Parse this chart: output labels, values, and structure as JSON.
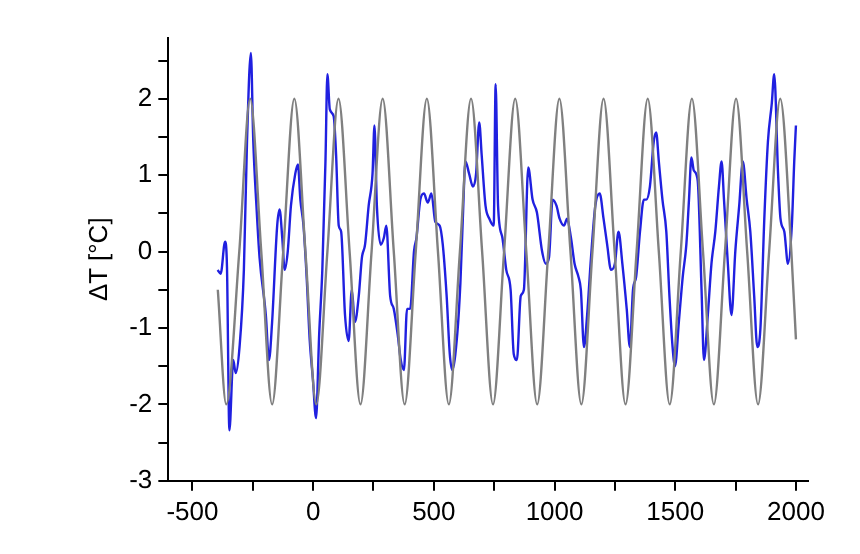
{
  "chart_data": {
    "type": "line",
    "ylabel": "ΔT [°C]",
    "xlim": [
      -600,
      2050
    ],
    "ylim": [
      -3,
      2.8
    ],
    "xticks": [
      -500,
      {
        "value": -250,
        "label": null
      },
      0,
      {
        "value": 250,
        "label": null
      },
      500,
      {
        "value": 750,
        "label": null
      },
      1000,
      {
        "value": 1250,
        "label": null
      },
      1500,
      {
        "value": 1750,
        "label": null
      },
      2000
    ],
    "yticks": [
      -3,
      {
        "value": -2.5,
        "label": null
      },
      -2,
      {
        "value": -1.5,
        "label": null
      },
      -1,
      {
        "value": -0.5,
        "label": null
      },
      0,
      {
        "value": 0.5,
        "label": null
      },
      1,
      {
        "value": 1.5,
        "label": null
      },
      2,
      {
        "value": 2.5,
        "label": null
      }
    ],
    "series": [
      {
        "color": "#808080",
        "x": [
          -395,
          -360,
          -306,
          -261,
          -215,
          -170,
          -124,
          -78,
          -32,
          13,
          59,
          105,
          151,
          196,
          242,
          288,
          334,
          379,
          425,
          471,
          517,
          562,
          608,
          654,
          700,
          745,
          791,
          837,
          883,
          928,
          974,
          1020,
          1066,
          1111,
          1157,
          1203,
          1249,
          1294,
          1340,
          1386,
          1432,
          1477,
          1523,
          1569,
          1615,
          1660,
          1706,
          1752,
          1798,
          1843,
          1889,
          1935,
          1981,
          2000
        ],
        "values": [
          -0.5,
          -2,
          0,
          2,
          0,
          -2,
          0,
          2,
          0,
          -2,
          0,
          2,
          0,
          -2,
          0,
          2,
          0,
          -2,
          0,
          2,
          0,
          -2,
          0,
          2,
          0,
          -2,
          0,
          2,
          0,
          -2,
          0,
          2,
          0,
          -2,
          0,
          2,
          0,
          -2,
          0,
          2,
          0,
          -2,
          0,
          2,
          0,
          -2,
          0,
          2,
          0,
          -2,
          0,
          2,
          0,
          -1.15
        ]
      },
      {
        "color": "#2020e0",
        "x": [
          -396,
          -383,
          -365,
          -357,
          -347,
          -331,
          -321,
          -305,
          -287,
          -274,
          -258,
          -248,
          -235,
          -222,
          -196,
          -183,
          -170,
          -149,
          -139,
          -128,
          -118,
          -105,
          -92,
          -74,
          -63,
          -53,
          -40,
          -27,
          -14,
          -1,
          12,
          25,
          38,
          51,
          59,
          69,
          85,
          95,
          106,
          116,
          132,
          147,
          160,
          173,
          189,
          202,
          215,
          230,
          246,
          254,
          264,
          280,
          293,
          303,
          319,
          334,
          350,
          363,
          376,
          389,
          402,
          418,
          428,
          444,
          459,
          475,
          490,
          506,
          524,
          537,
          553,
          566,
          576,
          597,
          610,
          620,
          631,
          646,
          662,
          675,
          688,
          698,
          714,
          730,
          748,
          756,
          766,
          784,
          800,
          818,
          831,
          844,
          860,
          873,
          891,
          909,
          927,
          948,
          964,
          977,
          992,
          1008,
          1021,
          1039,
          1052,
          1068,
          1083,
          1099,
          1109,
          1122,
          1135,
          1151,
          1169,
          1187,
          1203,
          1218,
          1234,
          1250,
          1265,
          1281,
          1299,
          1312,
          1325,
          1338,
          1354,
          1370,
          1380,
          1395,
          1411,
          1421,
          1432,
          1447,
          1463,
          1476,
          1489,
          1499,
          1515,
          1531,
          1546,
          1557,
          1567,
          1577,
          1593,
          1609,
          1619,
          1635,
          1650,
          1666,
          1681,
          1692,
          1702,
          1718,
          1733,
          1749,
          1765,
          1780,
          1796,
          1811,
          1827,
          1840,
          1853,
          1869,
          1884,
          1900,
          1910,
          1926,
          1936,
          1952,
          1967,
          1983,
          1993,
          2000
        ],
        "values": [
          -0.24,
          -0.29,
          0.13,
          -0.2,
          -2.34,
          -1.42,
          -1.59,
          -1.25,
          -0.24,
          1.44,
          2.6,
          1.44,
          0.6,
          -0.08,
          -0.83,
          -1.42,
          -0.92,
          0.34,
          0.55,
          0.18,
          -0.24,
          0.01,
          0.6,
          1.02,
          1.14,
          0.68,
          0.34,
          -0.33,
          -1.17,
          -1.67,
          -2.18,
          -1.08,
          -0.24,
          1.18,
          2.32,
          1.86,
          1.77,
          1.27,
          0.34,
          0.26,
          -0.83,
          -1.17,
          -0.5,
          -0.92,
          -0.58,
          -0.08,
          0.09,
          0.6,
          1.02,
          1.65,
          0.6,
          0.09,
          0.18,
          0.34,
          -0.58,
          -0.75,
          -1.08,
          -1.42,
          -1.55,
          -0.75,
          -0.75,
          0.01,
          0.18,
          0.68,
          0.76,
          0.64,
          0.76,
          0.39,
          0.34,
          0.09,
          -0.58,
          -1.34,
          -1.55,
          -1.08,
          -0.41,
          0.43,
          1.18,
          1.02,
          0.85,
          1.02,
          1.69,
          1.27,
          0.6,
          0.43,
          0.34,
          2.19,
          0.6,
          0.18,
          -0.24,
          -0.5,
          -1.34,
          -1.42,
          -0.58,
          -0.5,
          1.1,
          0.68,
          0.51,
          0.01,
          -0.16,
          -0.08,
          0.68,
          0.6,
          0.43,
          0.34,
          0.43,
          0.18,
          -0.16,
          -0.33,
          -0.5,
          -1.25,
          -0.83,
          -0.08,
          0.6,
          0.76,
          0.43,
          0.09,
          -0.24,
          -0.16,
          0.26,
          -0.16,
          -0.75,
          -1.25,
          -0.5,
          -0.33,
          0.26,
          0.68,
          0.68,
          0.85,
          1.44,
          1.56,
          1.18,
          0.68,
          0.26,
          -0.58,
          -1.25,
          -1.5,
          -0.92,
          -0.33,
          0.09,
          0.68,
          1.23,
          1.06,
          0.93,
          -0.5,
          -1.42,
          -0.83,
          -0.16,
          0.26,
          0.85,
          1.18,
          0.68,
          -0.16,
          -0.83,
          0.01,
          0.6,
          1.18,
          0.68,
          0.26,
          -0.58,
          -1.25,
          -1.0,
          0.43,
          1.44,
          1.94,
          2.32,
          1.02,
          0.43,
          0.26,
          -0.16,
          0.34,
          1.18,
          1.65
        ]
      }
    ]
  }
}
